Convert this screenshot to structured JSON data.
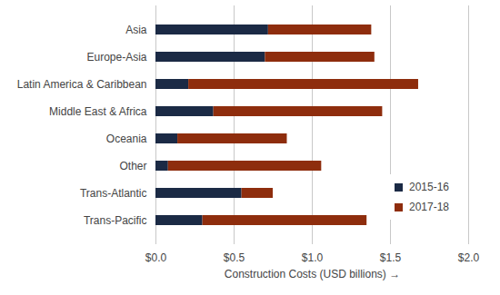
{
  "chart_data": {
    "type": "bar",
    "orientation": "horizontal",
    "stacked": true,
    "grid": true,
    "legend": "right",
    "xlabel": "Construction Costs (USD billions)",
    "categories": [
      "Asia",
      "Europe-Asia",
      "Latin America & Caribbean",
      "Middle East & Africa",
      "Oceania",
      "Other",
      "Trans-Atlantic",
      "Trans-Pacific"
    ],
    "series": [
      {
        "name": "2015-16",
        "color": "#1b2a45",
        "values": [
          0.72,
          0.7,
          0.21,
          0.37,
          0.14,
          0.08,
          0.55,
          0.3
        ]
      },
      {
        "name": "2017-18",
        "color": "#8e2d0d",
        "values": [
          0.66,
          0.7,
          1.47,
          1.08,
          0.7,
          0.98,
          0.2,
          1.05
        ]
      }
    ],
    "xlim": [
      0,
      2
    ],
    "xticks": [
      {
        "value": 0,
        "label": "$0.0"
      },
      {
        "value": 0.5,
        "label": "$0.5"
      },
      {
        "value": 1,
        "label": "$1.0"
      },
      {
        "value": 1.5,
        "label": "$1.5"
      },
      {
        "value": 2,
        "label": "$2.0"
      }
    ]
  }
}
